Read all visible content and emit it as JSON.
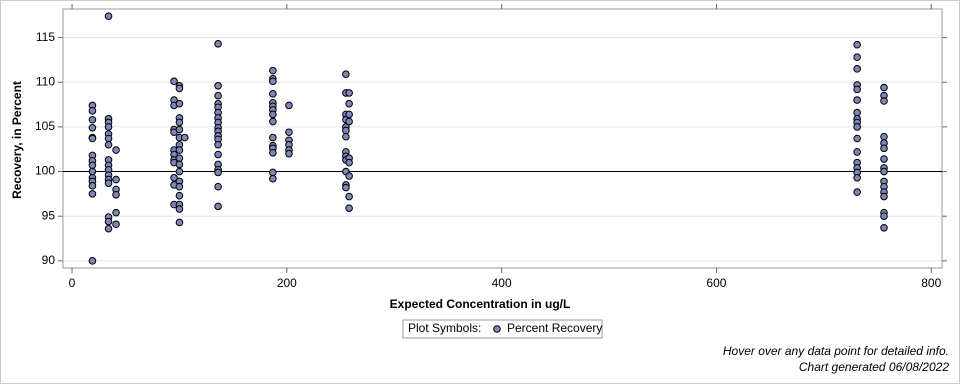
{
  "chart_data": {
    "type": "scatter",
    "xlabel": "Expected Concentration in ug/L",
    "ylabel": "Recovery, in Percent",
    "xlim": [
      -8.4,
      810
    ],
    "ylim": [
      89.2,
      118.2
    ],
    "xticks": [
      0,
      200,
      400,
      600,
      800
    ],
    "yticks": [
      90,
      95,
      100,
      105,
      110,
      115
    ],
    "grid": true,
    "reference_line": 100,
    "legend_title": "Plot Symbols:",
    "legend_position": "bottom",
    "series": [
      {
        "name": "Percent Recovery",
        "color": "#7c86b8",
        "x": [
          19,
          19,
          19,
          19,
          19,
          19,
          19,
          19,
          19,
          19,
          19,
          19,
          19,
          19,
          19,
          34,
          34,
          34,
          34,
          34,
          34,
          34,
          34,
          34,
          34,
          34,
          34,
          34,
          34,
          34,
          34,
          41,
          41,
          41,
          41,
          41,
          41,
          95,
          95,
          95,
          95,
          95,
          95,
          95,
          95,
          95,
          95,
          95,
          95,
          100,
          100,
          100,
          100,
          100,
          100,
          100,
          100,
          100,
          100,
          100,
          100,
          100,
          100,
          100,
          100,
          100,
          100,
          105,
          136,
          136,
          136,
          136,
          136,
          136,
          136,
          136,
          136,
          136,
          136,
          136,
          136,
          136,
          136,
          136,
          136,
          136,
          136,
          187,
          187,
          187,
          187,
          187,
          187,
          187,
          187,
          187,
          187,
          187,
          187,
          187,
          187,
          187,
          202,
          202,
          202,
          202,
          202,
          202,
          255,
          255,
          255,
          255,
          255,
          255,
          255,
          255,
          255,
          255,
          255,
          255,
          255,
          258,
          258,
          258,
          258,
          258,
          258,
          258,
          258,
          258,
          731,
          731,
          731,
          731,
          731,
          731,
          731,
          731,
          731,
          731,
          731,
          731,
          731,
          731,
          731,
          731,
          731,
          756,
          756,
          756,
          756,
          756,
          756,
          756,
          756,
          756,
          756,
          756,
          756,
          756,
          756,
          756,
          756
        ],
        "values": [
          107.4,
          106.8,
          105.8,
          104.9,
          103.8,
          103.7,
          101.8,
          101.2,
          100.7,
          100,
          99.3,
          98.9,
          98.4,
          97.5,
          90,
          117.4,
          105.9,
          105.5,
          105,
          104.2,
          103.7,
          103,
          101.3,
          100.7,
          100.2,
          99.6,
          99.1,
          98.7,
          94.9,
          94.4,
          93.6,
          102.4,
          99.1,
          98,
          97.4,
          95.4,
          94.1,
          110.1,
          108,
          107.4,
          104.7,
          104.4,
          102.4,
          101.9,
          101.3,
          101,
          99.3,
          98.5,
          96.3,
          109.6,
          109.3,
          107.6,
          106,
          105.5,
          104.7,
          103.8,
          103,
          102.4,
          101.5,
          100.8,
          100,
          98.9,
          98.3,
          97.3,
          96.3,
          95.8,
          94.3,
          103.8,
          114.3,
          109.6,
          108.5,
          107.6,
          107.2,
          106.6,
          106,
          105.5,
          104.9,
          104.5,
          104,
          103.6,
          103,
          101.9,
          100.8,
          100.2,
          99.9,
          98.3,
          96.1,
          111.3,
          110.4,
          110.1,
          108.7,
          107.7,
          107.3,
          106.9,
          106.4,
          105.6,
          103.8,
          102.9,
          102.6,
          102.1,
          99.9,
          99.2,
          107.4,
          104.4,
          103.5,
          103,
          102.4,
          102,
          110.9,
          108.8,
          106.4,
          105.8,
          105,
          104.6,
          103.9,
          102.2,
          101.7,
          101.3,
          100,
          98.5,
          98.2,
          108.8,
          107.6,
          106.4,
          105.6,
          101.5,
          101,
          99.5,
          97.2,
          95.9,
          114.2,
          112.8,
          111.5,
          109.7,
          109.2,
          108,
          106.6,
          105.9,
          105.5,
          105,
          103.7,
          102.2,
          101,
          100.4,
          99.9,
          99.3,
          97.7,
          109.4,
          108.5,
          107.9,
          103.9,
          103.2,
          102.6,
          101.4,
          100.4,
          100,
          98.9,
          98.3,
          97.7,
          97.2,
          95.4,
          95,
          93.7
        ]
      }
    ],
    "footnotes": [
      "Hover over any data point for detailed info.",
      "Chart generated 06/08/2022"
    ]
  }
}
